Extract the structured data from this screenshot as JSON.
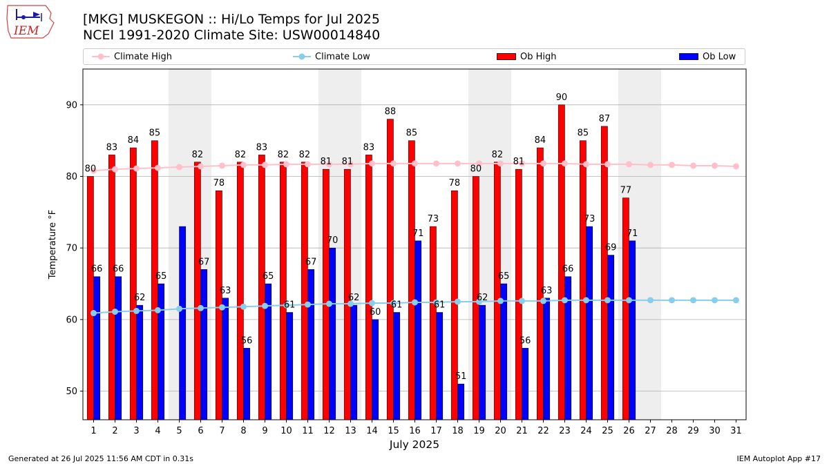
{
  "title_line1": "[MKG] MUSKEGON :: Hi/Lo Temps for Jul 2025",
  "title_line2": "NCEI 1991-2020 Climate Site: USW00014840",
  "logo_text": "IEM",
  "footer_left": "Generated at 26 Jul 2025 11:56 AM CDT in 0.31s",
  "footer_right": "IEM Autoplot App #17",
  "colors": {
    "ob_high": "#ff0000",
    "ob_low": "#0000ff",
    "climate_high": "#ffc0cb",
    "climate_low": "#87ceeb",
    "weekend_shade": "#eeeeee"
  },
  "legend": [
    {
      "label": "Climate High",
      "kind": "line",
      "color": "#ffc0cb"
    },
    {
      "label": "Climate Low",
      "kind": "line",
      "color": "#87ceeb"
    },
    {
      "label": "Ob High",
      "kind": "box",
      "color": "#ff0000"
    },
    {
      "label": "Ob Low",
      "kind": "box",
      "color": "#0000ff"
    }
  ],
  "chart_data": {
    "type": "bar",
    "xlabel": "July 2025",
    "ylabel": "Temperature °F",
    "ylim": [
      46,
      95
    ],
    "yticks": [
      50,
      60,
      70,
      80,
      90
    ],
    "grid": "horizontal",
    "legend_placement": "top",
    "categories": [
      "1",
      "2",
      "3",
      "4",
      "5",
      "6",
      "7",
      "8",
      "9",
      "10",
      "11",
      "12",
      "13",
      "14",
      "15",
      "16",
      "17",
      "18",
      "19",
      "20",
      "21",
      "22",
      "23",
      "24",
      "25",
      "26",
      "27",
      "28",
      "29",
      "30",
      "31"
    ],
    "shaded_days": [
      5,
      6,
      12,
      13,
      19,
      20,
      26,
      27
    ],
    "series": [
      {
        "name": "Ob High",
        "kind": "bar",
        "values": [
          80,
          83,
          84,
          85,
          null,
          82,
          78,
          82,
          83,
          82,
          82,
          81,
          81,
          83,
          88,
          85,
          73,
          78,
          80,
          82,
          81,
          84,
          90,
          85,
          87,
          77,
          null,
          null,
          null,
          null,
          null
        ],
        "labels": [
          "80",
          "83",
          "84",
          "85",
          "",
          "82",
          "78",
          "82",
          "83",
          "82",
          "82",
          "81",
          "81",
          "83",
          "88",
          "85",
          "73",
          "78",
          "80",
          "82",
          "81",
          "84",
          "90",
          "85",
          "87",
          "77",
          "",
          "",
          "",
          "",
          ""
        ]
      },
      {
        "name": "Ob Low",
        "kind": "bar",
        "values": [
          66,
          66,
          62,
          65,
          73,
          67,
          63,
          56,
          65,
          61,
          67,
          70,
          62,
          60,
          61,
          71,
          61,
          51,
          62,
          65,
          56,
          63,
          66,
          73,
          69,
          71,
          null,
          null,
          null,
          null,
          null
        ],
        "labels": [
          "66",
          "66",
          "62",
          "65",
          "",
          "67",
          "63",
          "56",
          "65",
          "61",
          "67",
          "70",
          "62",
          "60",
          "61",
          "71",
          "61",
          "51",
          "62",
          "65",
          "56",
          "63",
          "66",
          "73",
          "69",
          "71",
          "",
          "",
          "",
          "",
          ""
        ]
      },
      {
        "name": "Climate High",
        "kind": "line",
        "values": [
          80.8,
          81.0,
          81.1,
          81.2,
          81.3,
          81.4,
          81.5,
          81.6,
          81.6,
          81.7,
          81.7,
          81.7,
          81.7,
          81.8,
          81.8,
          81.8,
          81.8,
          81.8,
          81.8,
          81.8,
          81.8,
          81.8,
          81.8,
          81.7,
          81.7,
          81.7,
          81.6,
          81.6,
          81.5,
          81.5,
          81.4
        ]
      },
      {
        "name": "Climate Low",
        "kind": "line",
        "values": [
          60.9,
          61.1,
          61.2,
          61.3,
          61.5,
          61.6,
          61.7,
          61.8,
          61.9,
          62.0,
          62.1,
          62.2,
          62.2,
          62.3,
          62.3,
          62.4,
          62.4,
          62.5,
          62.5,
          62.6,
          62.6,
          62.6,
          62.7,
          62.7,
          62.7,
          62.7,
          62.7,
          62.7,
          62.7,
          62.7,
          62.7
        ]
      }
    ]
  }
}
